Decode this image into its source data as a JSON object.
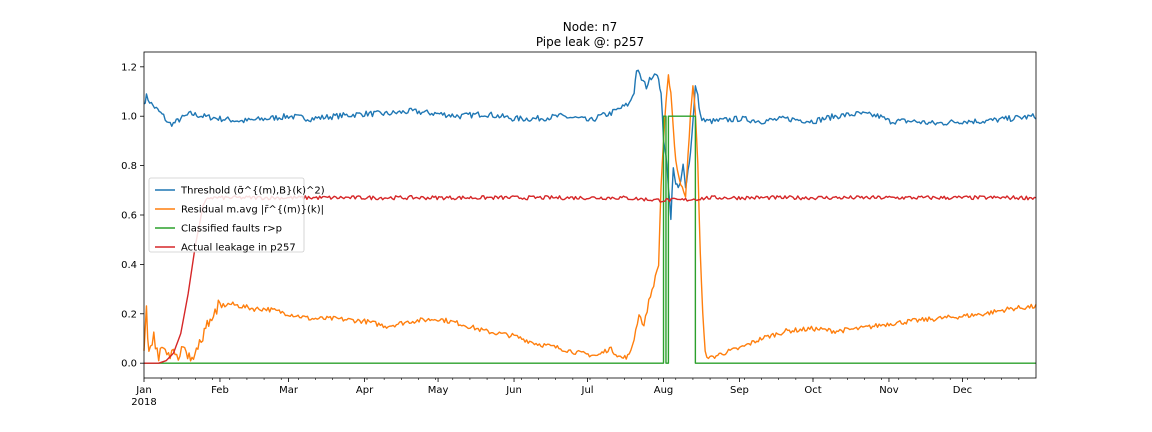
{
  "chart_data": {
    "type": "line",
    "title": "Node: n7",
    "subtitle": "Pipe leak @: p257",
    "xlabel": "",
    "ylabel": "",
    "xlim": [
      "2018-01-01",
      "2018-12-31"
    ],
    "ylim": [
      -0.06,
      1.26
    ],
    "y_ticks": [
      "0.0",
      "0.2",
      "0.4",
      "0.6",
      "0.8",
      "1.0",
      "1.2"
    ],
    "x_ticks": [
      {
        "date": "2018-01-01",
        "label": "Jan"
      },
      {
        "date": "2018-02-01",
        "label": "Feb"
      },
      {
        "date": "2018-03-01",
        "label": "Mar"
      },
      {
        "date": "2018-04-01",
        "label": "Apr"
      },
      {
        "date": "2018-05-01",
        "label": "May"
      },
      {
        "date": "2018-06-01",
        "label": "Jun"
      },
      {
        "date": "2018-07-01",
        "label": "Jul"
      },
      {
        "date": "2018-08-01",
        "label": "Aug"
      },
      {
        "date": "2018-09-01",
        "label": "Sep"
      },
      {
        "date": "2018-10-01",
        "label": "Oct"
      },
      {
        "date": "2018-11-01",
        "label": "Nov"
      },
      {
        "date": "2018-12-01",
        "label": "Dec"
      }
    ],
    "x_year_label": "2018",
    "grid": false,
    "legend_position": "center-left",
    "series": [
      {
        "name": "Threshold",
        "legend_math": "(σ̄^{(m),B}(k)^2)",
        "color": "#1f77b4",
        "points": [
          [
            "2018-01-01",
            1.05
          ],
          [
            "2018-01-02",
            1.08
          ],
          [
            "2018-01-04",
            1.05
          ],
          [
            "2018-01-06",
            1.03
          ],
          [
            "2018-01-09",
            1.0
          ],
          [
            "2018-01-11",
            0.97
          ],
          [
            "2018-01-13",
            0.97
          ],
          [
            "2018-01-16",
            0.99
          ],
          [
            "2018-01-20",
            1.01
          ],
          [
            "2018-01-25",
            1.0
          ],
          [
            "2018-02-01",
            0.99
          ],
          [
            "2018-02-10",
            0.98
          ],
          [
            "2018-02-20",
            0.99
          ],
          [
            "2018-03-01",
            1.0
          ],
          [
            "2018-03-10",
            0.99
          ],
          [
            "2018-03-20",
            1.0
          ],
          [
            "2018-04-01",
            1.01
          ],
          [
            "2018-04-10",
            1.01
          ],
          [
            "2018-04-20",
            1.02
          ],
          [
            "2018-05-01",
            1.01
          ],
          [
            "2018-05-10",
            1.0
          ],
          [
            "2018-05-20",
            1.01
          ],
          [
            "2018-06-01",
            0.99
          ],
          [
            "2018-06-10",
            0.99
          ],
          [
            "2018-06-20",
            1.0
          ],
          [
            "2018-06-28",
            0.99
          ],
          [
            "2018-07-02",
            0.98
          ],
          [
            "2018-07-06",
            1.0
          ],
          [
            "2018-07-10",
            1.01
          ],
          [
            "2018-07-14",
            1.03
          ],
          [
            "2018-07-18",
            1.05
          ],
          [
            "2018-07-20",
            1.1
          ],
          [
            "2018-07-21",
            1.19
          ],
          [
            "2018-07-23",
            1.15
          ],
          [
            "2018-07-25",
            1.12
          ],
          [
            "2018-07-27",
            1.16
          ],
          [
            "2018-07-29",
            1.18
          ],
          [
            "2018-07-30",
            1.14
          ],
          [
            "2018-07-31",
            1.1
          ],
          [
            "2018-08-01",
            0.9
          ],
          [
            "2018-08-02",
            0.85
          ],
          [
            "2018-08-03",
            0.72
          ],
          [
            "2018-08-04",
            0.58
          ],
          [
            "2018-08-05",
            0.8
          ],
          [
            "2018-08-06",
            0.72
          ],
          [
            "2018-08-07",
            0.71
          ],
          [
            "2018-08-08",
            0.73
          ],
          [
            "2018-08-09",
            0.8
          ],
          [
            "2018-08-10",
            0.72
          ],
          [
            "2018-08-11",
            0.78
          ],
          [
            "2018-08-12",
            0.85
          ],
          [
            "2018-08-14",
            1.12
          ],
          [
            "2018-08-15",
            1.08
          ],
          [
            "2018-08-16",
            1.0
          ],
          [
            "2018-08-18",
            0.98
          ],
          [
            "2018-08-22",
            0.98
          ],
          [
            "2018-09-01",
            0.99
          ],
          [
            "2018-09-10",
            0.98
          ],
          [
            "2018-09-20",
            0.99
          ],
          [
            "2018-10-01",
            0.98
          ],
          [
            "2018-10-10",
            1.0
          ],
          [
            "2018-10-20",
            1.01
          ],
          [
            "2018-10-28",
            1.0
          ],
          [
            "2018-11-01",
            0.98
          ],
          [
            "2018-11-10",
            0.98
          ],
          [
            "2018-11-20",
            0.97
          ],
          [
            "2018-12-01",
            0.98
          ],
          [
            "2018-12-10",
            0.98
          ],
          [
            "2018-12-20",
            0.99
          ],
          [
            "2018-12-31",
            1.0
          ]
        ]
      },
      {
        "name": "Residual m.avg",
        "legend_math": "|r̄^{(m)}(k)|",
        "color": "#ff7f0e",
        "points": [
          [
            "2018-01-01",
            0.05
          ],
          [
            "2018-01-02",
            0.22
          ],
          [
            "2018-01-03",
            0.02
          ],
          [
            "2018-01-05",
            0.12
          ],
          [
            "2018-01-07",
            0.01
          ],
          [
            "2018-01-09",
            0.08
          ],
          [
            "2018-01-11",
            0.02
          ],
          [
            "2018-01-13",
            0.07
          ],
          [
            "2018-01-15",
            0.01
          ],
          [
            "2018-01-17",
            0.05
          ],
          [
            "2018-01-20",
            0.03
          ],
          [
            "2018-01-23",
            0.05
          ],
          [
            "2018-01-25",
            0.12
          ],
          [
            "2018-01-28",
            0.18
          ],
          [
            "2018-02-01",
            0.23
          ],
          [
            "2018-02-05",
            0.24
          ],
          [
            "2018-02-10",
            0.23
          ],
          [
            "2018-02-15",
            0.22
          ],
          [
            "2018-02-20",
            0.22
          ],
          [
            "2018-03-01",
            0.2
          ],
          [
            "2018-03-10",
            0.18
          ],
          [
            "2018-03-20",
            0.18
          ],
          [
            "2018-04-01",
            0.17
          ],
          [
            "2018-04-10",
            0.15
          ],
          [
            "2018-04-20",
            0.17
          ],
          [
            "2018-05-01",
            0.18
          ],
          [
            "2018-05-10",
            0.16
          ],
          [
            "2018-05-20",
            0.13
          ],
          [
            "2018-06-01",
            0.11
          ],
          [
            "2018-06-10",
            0.08
          ],
          [
            "2018-06-20",
            0.06
          ],
          [
            "2018-06-28",
            0.04
          ],
          [
            "2018-07-05",
            0.03
          ],
          [
            "2018-07-10",
            0.06
          ],
          [
            "2018-07-15",
            0.02
          ],
          [
            "2018-07-18",
            0.03
          ],
          [
            "2018-07-20",
            0.1
          ],
          [
            "2018-07-22",
            0.2
          ],
          [
            "2018-07-24",
            0.15
          ],
          [
            "2018-07-26",
            0.25
          ],
          [
            "2018-07-28",
            0.32
          ],
          [
            "2018-07-30",
            0.4
          ],
          [
            "2018-07-31",
            0.72
          ],
          [
            "2018-08-01",
            0.9
          ],
          [
            "2018-08-02",
            1.05
          ],
          [
            "2018-08-03",
            1.16
          ],
          [
            "2018-08-04",
            1.1
          ],
          [
            "2018-08-05",
            0.95
          ],
          [
            "2018-08-06",
            0.82
          ],
          [
            "2018-08-08",
            0.72
          ],
          [
            "2018-08-10",
            0.68
          ],
          [
            "2018-08-11",
            0.85
          ],
          [
            "2018-08-12",
            1.0
          ],
          [
            "2018-08-13",
            1.12
          ],
          [
            "2018-08-14",
            1.02
          ],
          [
            "2018-08-15",
            0.8
          ],
          [
            "2018-08-16",
            0.45
          ],
          [
            "2018-08-17",
            0.2
          ],
          [
            "2018-08-18",
            0.04
          ],
          [
            "2018-08-20",
            0.02
          ],
          [
            "2018-08-25",
            0.04
          ],
          [
            "2018-09-01",
            0.06
          ],
          [
            "2018-09-10",
            0.1
          ],
          [
            "2018-09-20",
            0.13
          ],
          [
            "2018-10-01",
            0.14
          ],
          [
            "2018-10-10",
            0.13
          ],
          [
            "2018-10-20",
            0.14
          ],
          [
            "2018-11-01",
            0.16
          ],
          [
            "2018-11-10",
            0.17
          ],
          [
            "2018-11-20",
            0.18
          ],
          [
            "2018-12-01",
            0.19
          ],
          [
            "2018-12-10",
            0.2
          ],
          [
            "2018-12-20",
            0.22
          ],
          [
            "2018-12-31",
            0.23
          ]
        ]
      },
      {
        "name": "Classified faults r>p",
        "color": "#2ca02c",
        "points": [
          [
            "2018-01-01",
            0.0
          ],
          [
            "2018-07-31",
            0.0
          ],
          [
            "2018-08-01",
            0.0
          ],
          [
            "2018-08-01",
            1.0
          ],
          [
            "2018-08-02",
            1.0
          ],
          [
            "2018-08-02",
            0.0
          ],
          [
            "2018-08-03",
            0.0
          ],
          [
            "2018-08-03",
            1.0
          ],
          [
            "2018-08-14",
            1.0
          ],
          [
            "2018-08-14",
            0.0
          ],
          [
            "2018-12-31",
            0.0
          ]
        ]
      },
      {
        "name": "Actual leakage in p257",
        "color": "#d62728",
        "points": [
          [
            "2018-01-01",
            0.0
          ],
          [
            "2018-01-07",
            0.0
          ],
          [
            "2018-01-10",
            0.01
          ],
          [
            "2018-01-13",
            0.04
          ],
          [
            "2018-01-16",
            0.12
          ],
          [
            "2018-01-19",
            0.28
          ],
          [
            "2018-01-22",
            0.48
          ],
          [
            "2018-01-25",
            0.63
          ],
          [
            "2018-01-27",
            0.67
          ],
          [
            "2018-02-15",
            0.67
          ],
          [
            "2018-03-15",
            0.67
          ],
          [
            "2018-04-15",
            0.67
          ],
          [
            "2018-05-15",
            0.67
          ],
          [
            "2018-06-15",
            0.67
          ],
          [
            "2018-07-15",
            0.67
          ],
          [
            "2018-07-30",
            0.66
          ],
          [
            "2018-08-08",
            0.66
          ],
          [
            "2018-08-20",
            0.67
          ],
          [
            "2018-09-15",
            0.67
          ],
          [
            "2018-10-15",
            0.67
          ],
          [
            "2018-11-15",
            0.67
          ],
          [
            "2018-12-31",
            0.67
          ]
        ]
      }
    ]
  }
}
